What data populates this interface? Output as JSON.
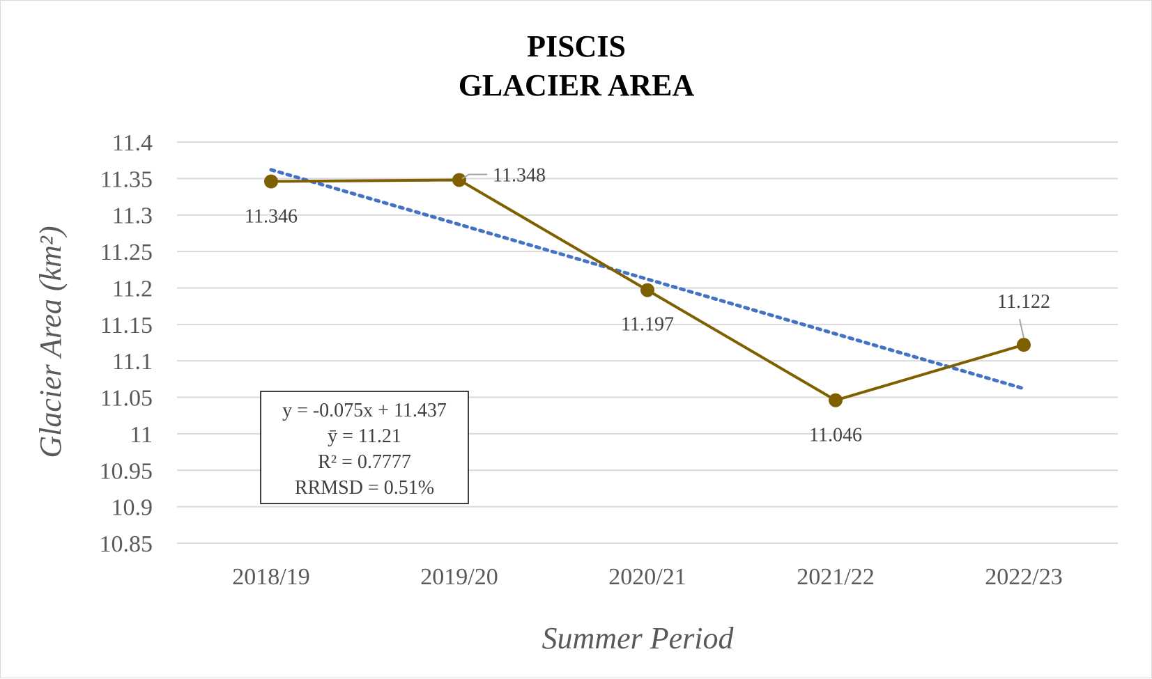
{
  "chart_data": {
    "type": "line",
    "title": [
      "PISCIS",
      "GLACIER AREA"
    ],
    "xlabel": "Summer Period",
    "ylabel": "Glacier Area (km²)",
    "categories": [
      "2018/19",
      "2019/20",
      "2020/21",
      "2021/22",
      "2022/23"
    ],
    "ylim": [
      10.85,
      11.4
    ],
    "yticks": [
      "11.4",
      "11.35",
      "11.3",
      "11.25",
      "11.2",
      "11.15",
      "11.1",
      "11.05",
      "11",
      "10.95",
      "10.9",
      "10.85"
    ],
    "series": [
      {
        "values": [
          11.346,
          11.348,
          11.197,
          11.046,
          11.122
        ],
        "labels": [
          "11.346",
          "11.348",
          "11.197",
          "11.046",
          "11.122"
        ],
        "color": "#7f6000"
      }
    ],
    "trendline": {
      "type": "linear",
      "slope": -0.075,
      "intercept": 11.437,
      "color": "#4472c4",
      "style": "dotted"
    },
    "annotation": [
      "y = -0.075x + 11.437",
      "ȳ = 11.21",
      "R² = 0.7777",
      "RRMSD = 0.51%"
    ],
    "grid": true,
    "legend": "none"
  }
}
